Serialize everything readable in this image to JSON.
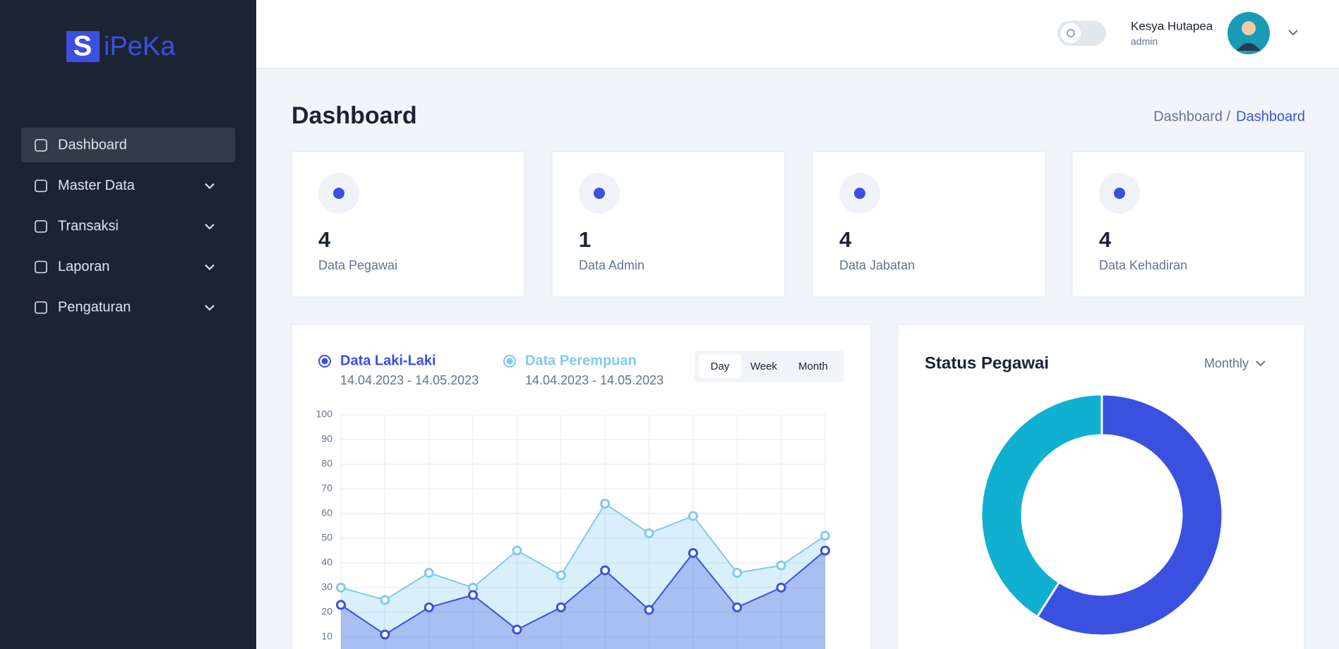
{
  "sidebar": {
    "logo_mark": "S",
    "logo_text": "iPeKa",
    "nav": [
      {
        "label": "Dashboard",
        "active": true,
        "expandable": false
      },
      {
        "label": "Master Data",
        "active": false,
        "expandable": true
      },
      {
        "label": "Transaksi",
        "active": false,
        "expandable": true
      },
      {
        "label": "Laporan",
        "active": false,
        "expandable": true
      },
      {
        "label": "Pengaturan",
        "active": false,
        "expandable": true
      }
    ]
  },
  "header": {
    "user_name": "Kesya Hutapea",
    "user_role": "admin"
  },
  "page": {
    "title": "Dashboard",
    "breadcrumb": [
      "Dashboard /",
      "Dashboard"
    ]
  },
  "stats": [
    {
      "value": 4,
      "label": "Data Pegawai"
    },
    {
      "value": 1,
      "label": "Data Admin"
    },
    {
      "value": 4,
      "label": "Data Jabatan"
    },
    {
      "value": 4,
      "label": "Data Kehadiran"
    }
  ],
  "chart_data": [
    {
      "type": "line",
      "categories": [
        null,
        null,
        null,
        null,
        null,
        null,
        null,
        null,
        null,
        null,
        null,
        null
      ],
      "series": [
        {
          "name": "Data Laki-Laki",
          "range": "14.04.2023 - 14.05.2023",
          "color": "#3c50e0",
          "values": [
            23,
            11,
            22,
            27,
            13,
            22,
            37,
            21,
            44,
            22,
            30,
            45
          ]
        },
        {
          "name": "Data Perempuan",
          "range": "14.04.2023 - 14.05.2023",
          "color": "#80caee",
          "values": [
            30,
            25,
            36,
            30,
            45,
            35,
            64,
            52,
            59,
            36,
            39,
            51
          ]
        }
      ],
      "period_options": [
        "Day",
        "Week",
        "Month"
      ],
      "selected_period": 0,
      "ylim": [
        0,
        100
      ],
      "yticks": [
        10,
        20,
        30,
        40,
        50,
        60,
        70,
        80,
        90,
        100
      ],
      "grid": true
    },
    {
      "type": "pie",
      "title": "Status Pegawai",
      "period": "Monthly",
      "values": [
        59,
        41
      ],
      "colors": [
        "#3c50e0",
        "#10b0d0"
      ],
      "hole": true
    }
  ]
}
